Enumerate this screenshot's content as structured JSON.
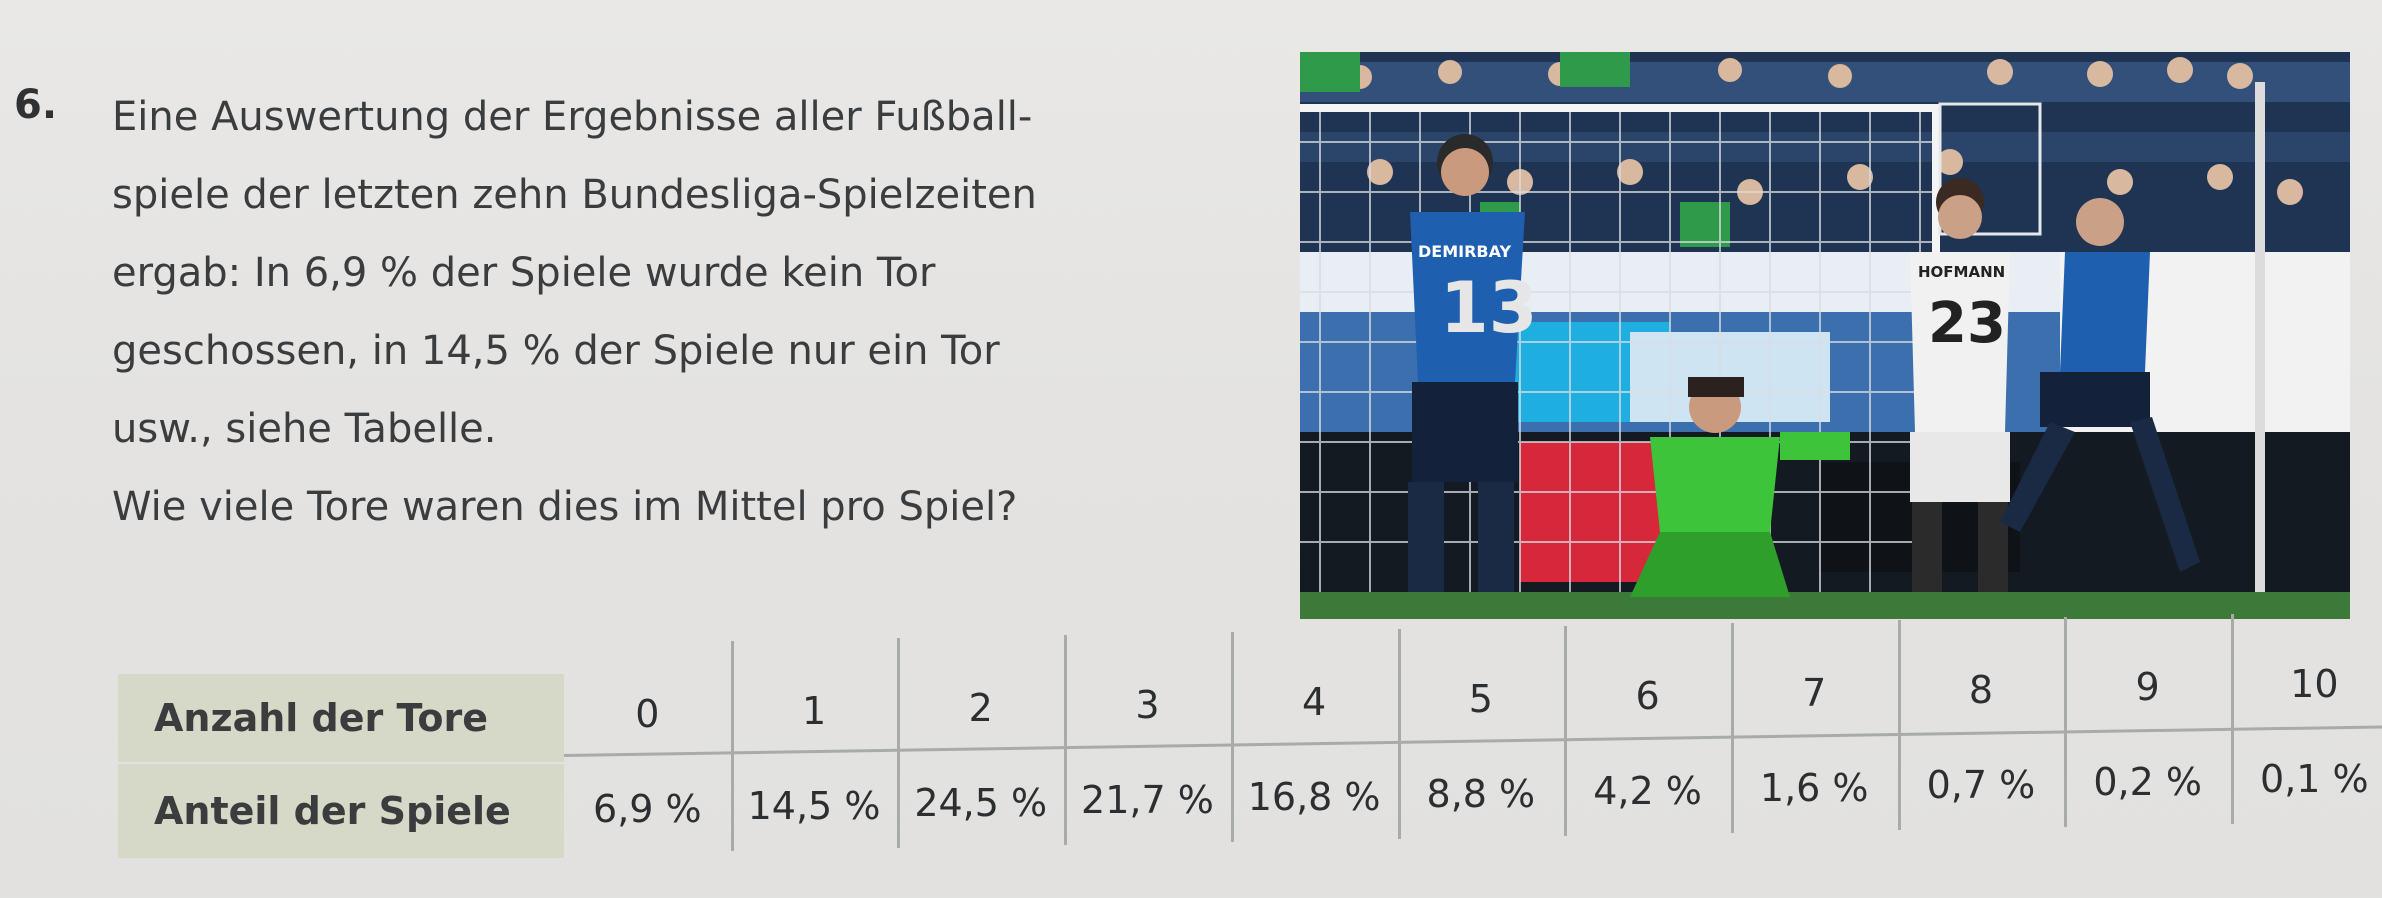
{
  "task": {
    "number": "6.",
    "lines": [
      "Eine Auswertung der Ergebnisse aller Fußball-",
      "spiele der letzten zehn Bundesliga-Spielzeiten",
      "ergab: In 6,9 % der Spiele wurde kein Tor",
      "geschossen, in 14,5 % der Spiele nur ein Tor",
      "usw., siehe Tabelle.",
      "Wie viele Tore waren dies im Mittel pro Spiel?"
    ]
  },
  "photo": {
    "jersey_number_left": "13",
    "jersey_number_right": "23",
    "jersey_name_left": "DEMIRBAY",
    "jersey_name_right": "HOFMANN"
  },
  "table": {
    "row1_header": "Anzahl der Tore",
    "row2_header": "Anteil der Spiele",
    "goals": [
      "0",
      "1",
      "2",
      "3",
      "4",
      "5",
      "6",
      "7",
      "8",
      "9",
      "10"
    ],
    "shares": [
      "6,9 %",
      "14,5 %",
      "24,5 %",
      "21,7 %",
      "16,8 %",
      "8,8 %",
      "4,2 %",
      "1,6 %",
      "0,7 %",
      "0,2 %",
      "0,1 %"
    ]
  }
}
